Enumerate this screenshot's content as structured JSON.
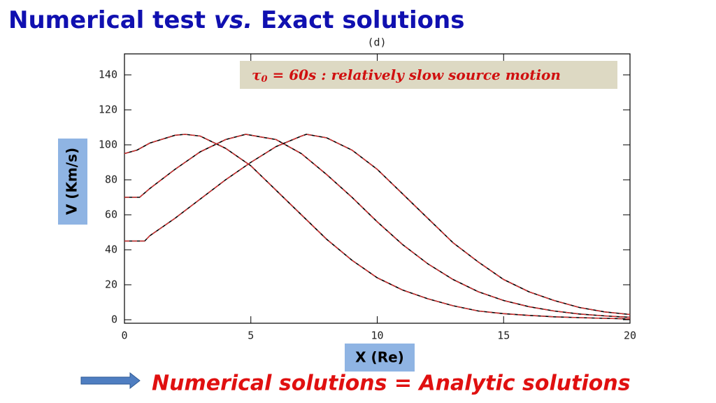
{
  "chart_data": {
    "type": "line",
    "title_parts": [
      "Numerical test ",
      "vs.",
      " Exact solutions"
    ],
    "subtitle": "(d)",
    "annotation_parts": [
      "τ",
      "0",
      " = 60s  : relatively slow source motion"
    ],
    "ylabel": "V (Km/s)",
    "xlabel": "X (Re)",
    "conclusion": "Numerical solutions = Analytic solutions",
    "xlim": [
      0,
      20
    ],
    "ylim": [
      -2,
      152
    ],
    "xticks": [
      0,
      5,
      10,
      15,
      20
    ],
    "yticks": [
      0,
      20,
      40,
      60,
      80,
      100,
      120,
      140
    ],
    "series": [
      {
        "color": "#000000",
        "overlay_color": "#e03030",
        "x": [
          0,
          0.5,
          1,
          2,
          2.4,
          3,
          4,
          5,
          6,
          7,
          8,
          9,
          10,
          11,
          12,
          13,
          14,
          15,
          16,
          17,
          18,
          19,
          20
        ],
        "values": [
          95,
          97,
          101,
          105.5,
          106,
          105,
          98,
          88,
          74,
          60,
          46,
          34,
          24,
          17,
          12,
          8,
          5,
          3.5,
          2.5,
          1.7,
          1.2,
          0.8,
          0.5
        ]
      },
      {
        "color": "#000000",
        "overlay_color": "#e03030",
        "x": [
          0,
          0.6,
          1,
          2,
          3,
          4,
          4.8,
          6,
          7,
          8,
          9,
          10,
          11,
          12,
          13,
          14,
          15,
          16,
          17,
          18,
          19,
          20
        ],
        "values": [
          70,
          70,
          75,
          86,
          96,
          103,
          106,
          103,
          95,
          83,
          70,
          56,
          43,
          32,
          23,
          16,
          11,
          7.5,
          5,
          3.3,
          2.2,
          1.4
        ]
      },
      {
        "color": "#000000",
        "overlay_color": "#e03030",
        "x": [
          0,
          0.8,
          1,
          2,
          3,
          4,
          5,
          6,
          7,
          7.2,
          8,
          9,
          10,
          11,
          12,
          13,
          14,
          15,
          16,
          17,
          18,
          19,
          20
        ],
        "values": [
          45,
          45,
          48,
          58,
          69,
          80,
          90,
          99,
          105,
          106,
          104,
          97,
          86,
          72,
          58,
          44,
          33,
          23,
          16,
          11,
          7,
          4.5,
          3
        ]
      }
    ]
  }
}
